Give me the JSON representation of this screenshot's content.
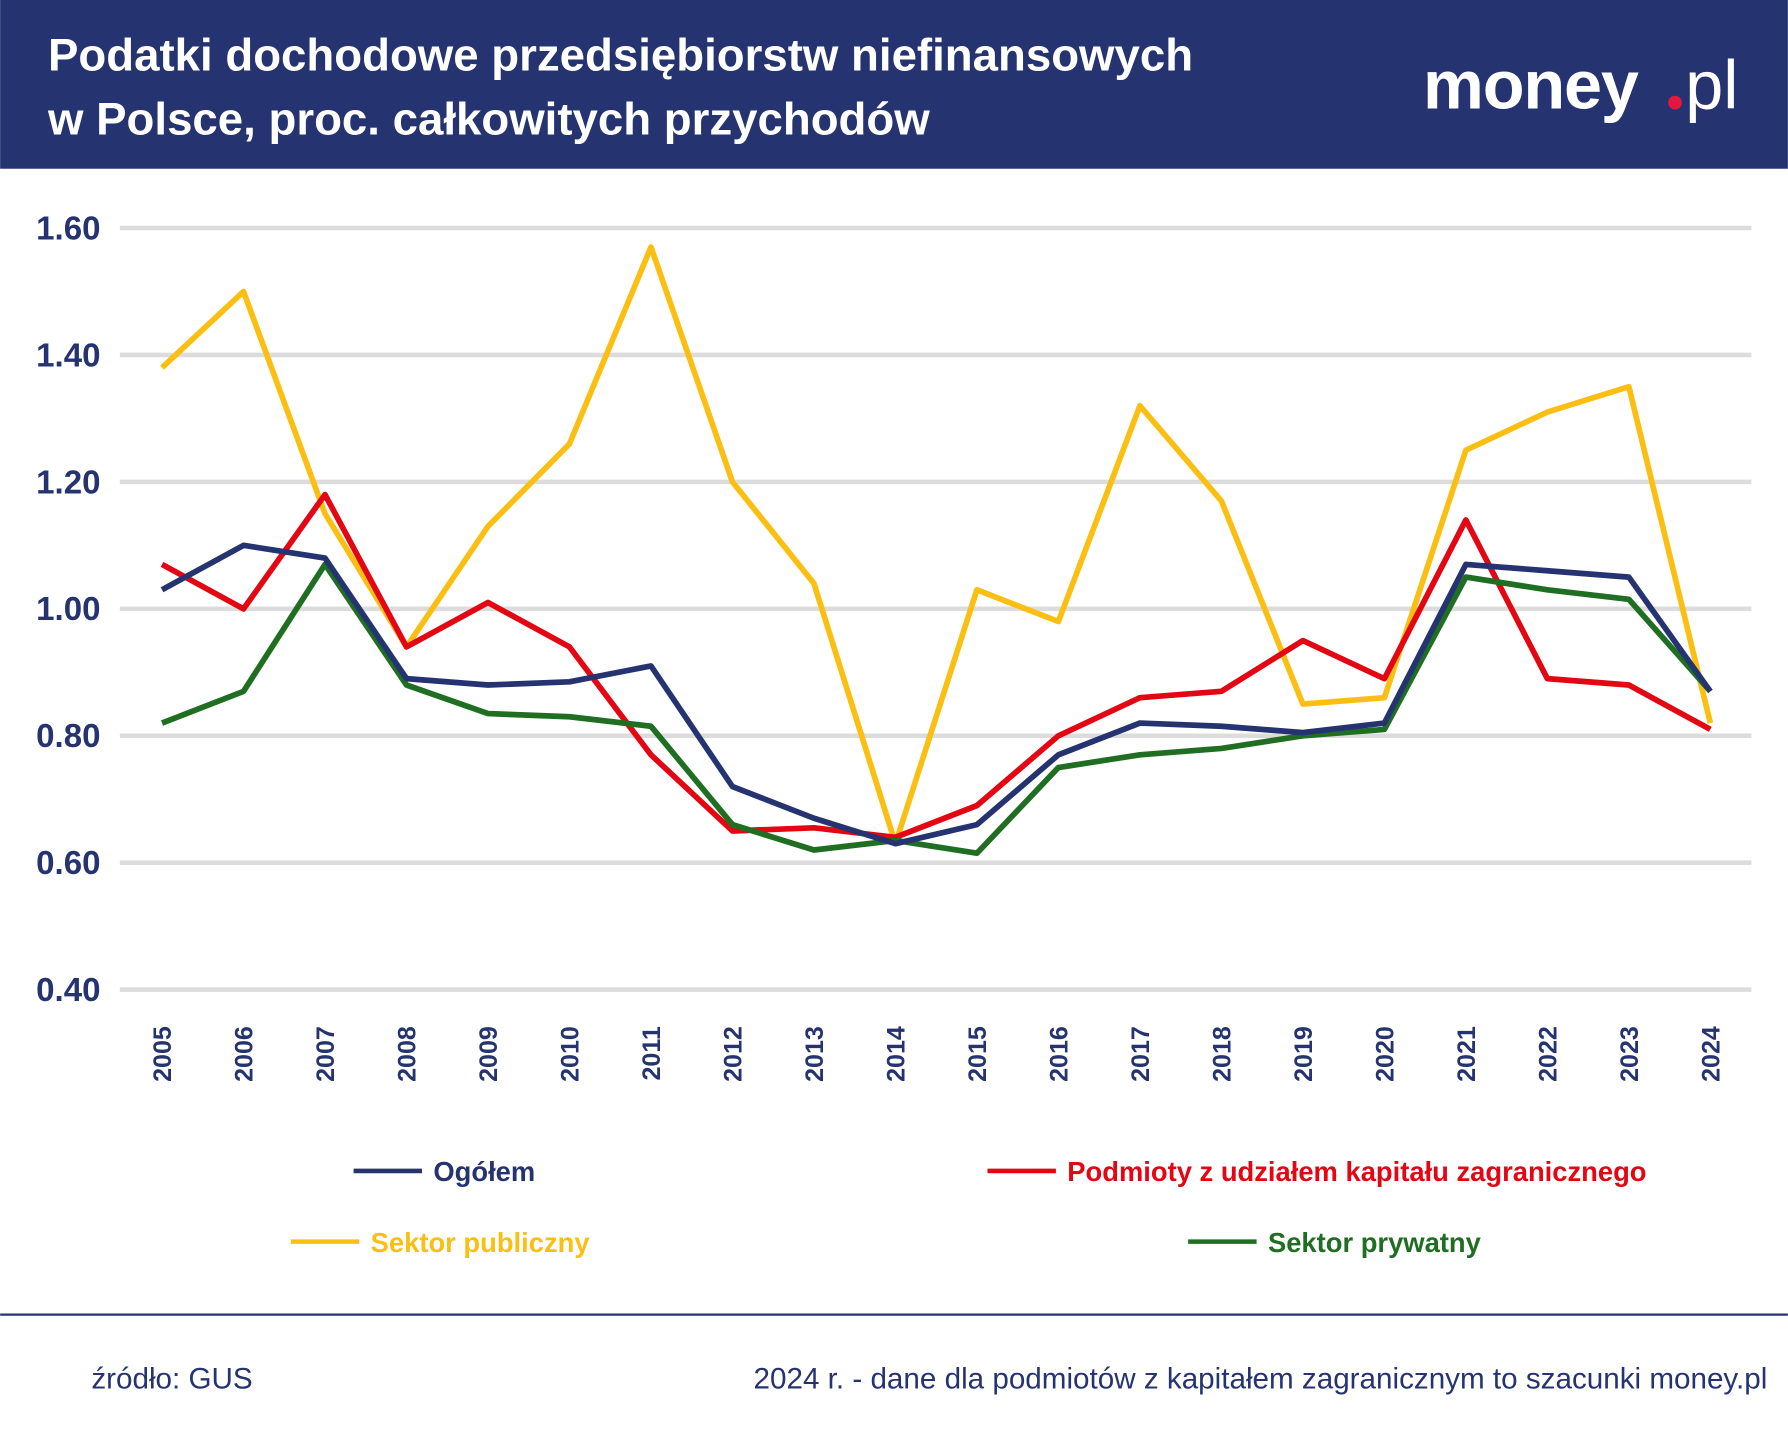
{
  "header": {
    "title_line1": "Podatki dochodowe przedsiębiorstw niefinansowych",
    "title_line2": "w Polsce, proc. całkowitych przychodów",
    "logo_text": "money.pl",
    "background_color": "#253470"
  },
  "footer": {
    "source": "źródło: GUS",
    "note": "2024 r. - dane dla podmiotów z kapitałem zagranicznym to szacunki money.pl"
  },
  "chart_data": {
    "type": "line",
    "title": "Podatki dochodowe przedsiębiorstw niefinansowych w Polsce, proc. całkowitych przychodów",
    "xlabel": "",
    "ylabel": "",
    "ylim": [
      0.4,
      1.6
    ],
    "yticks": [
      "0.40",
      "0.60",
      "0.80",
      "1.00",
      "1.20",
      "1.40",
      "1.60"
    ],
    "grid": true,
    "legend_placement": "bottom",
    "x": [
      "2005",
      "2006",
      "2007",
      "2008",
      "2009",
      "2010",
      "2011",
      "2012",
      "2013",
      "2014",
      "2015",
      "2016",
      "2017",
      "2018",
      "2019",
      "2020",
      "2021",
      "2022",
      "2023",
      "2024"
    ],
    "series": [
      {
        "name": "Ogółem",
        "color": "#253470",
        "values": [
          1.03,
          1.1,
          1.08,
          0.89,
          0.88,
          0.885,
          0.91,
          0.72,
          0.67,
          0.63,
          0.66,
          0.77,
          0.82,
          0.815,
          0.805,
          0.82,
          1.07,
          1.06,
          1.05,
          0.87
        ]
      },
      {
        "name": "Podmioty z udziałem kapitału zagranicznego",
        "color": "#e30613",
        "values": [
          1.07,
          1.0,
          1.18,
          0.94,
          1.01,
          0.94,
          0.77,
          0.65,
          0.655,
          0.64,
          0.69,
          0.8,
          0.86,
          0.87,
          0.95,
          0.89,
          1.14,
          0.89,
          0.88,
          0.81
        ]
      },
      {
        "name": "Sektor publiczny",
        "color": "#fbbf14",
        "values": [
          1.38,
          1.5,
          1.15,
          0.94,
          1.13,
          1.26,
          1.57,
          1.2,
          1.04,
          0.63,
          1.03,
          0.98,
          1.32,
          1.17,
          0.85,
          0.86,
          1.25,
          1.31,
          1.35,
          0.82
        ]
      },
      {
        "name": "Sektor prywatny",
        "color": "#1f6e22",
        "values": [
          0.82,
          0.87,
          1.07,
          0.88,
          0.835,
          0.83,
          0.815,
          0.66,
          0.62,
          0.635,
          0.615,
          0.75,
          0.77,
          0.78,
          0.8,
          0.81,
          1.05,
          1.03,
          1.015,
          0.87
        ]
      }
    ]
  }
}
